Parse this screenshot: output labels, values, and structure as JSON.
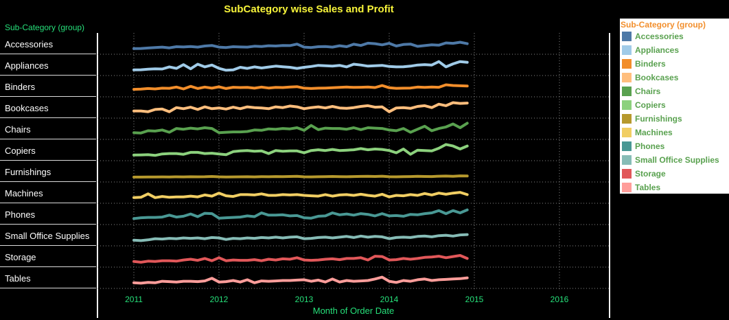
{
  "chart_data": {
    "type": "line",
    "title": "SubCategory wise Sales and Profit",
    "xlabel": "Month of Order Date",
    "row_header": "Sub-Category (group)",
    "legend_title": "Sub-Category (group)",
    "x_ticks": [
      "2011",
      "2012",
      "2013",
      "2014",
      "2015",
      "2016"
    ],
    "xlim": [
      "2011-01",
      "2016-12"
    ],
    "x_months": [
      "2011-01",
      "2011-02",
      "2011-03",
      "2011-04",
      "2011-05",
      "2011-06",
      "2011-07",
      "2011-08",
      "2011-09",
      "2011-10",
      "2011-11",
      "2011-12",
      "2012-01",
      "2012-02",
      "2012-03",
      "2012-04",
      "2012-05",
      "2012-06",
      "2012-07",
      "2012-08",
      "2012-09",
      "2012-10",
      "2012-11",
      "2012-12",
      "2013-01",
      "2013-02",
      "2013-03",
      "2013-04",
      "2013-05",
      "2013-06",
      "2013-07",
      "2013-08",
      "2013-09",
      "2013-10",
      "2013-11",
      "2013-12",
      "2014-01",
      "2014-02",
      "2014-03",
      "2014-04",
      "2014-05",
      "2014-06",
      "2014-07",
      "2014-08",
      "2014-09",
      "2014-10",
      "2014-11",
      "2014-12"
    ],
    "grid": true,
    "legend_position": "right",
    "series": [
      {
        "name": "Accessories",
        "color": "#4e79a7",
        "values": [
          0.2,
          0.22,
          0.28,
          0.35,
          0.4,
          0.3,
          0.45,
          0.42,
          0.48,
          0.4,
          0.55,
          0.62,
          0.4,
          0.35,
          0.45,
          0.42,
          0.4,
          0.52,
          0.48,
          0.58,
          0.55,
          0.62,
          0.6,
          0.8,
          0.4,
          0.35,
          0.45,
          0.48,
          0.4,
          0.58,
          0.45,
          0.78,
          0.62,
          0.92,
          0.85,
          0.7,
          0.9,
          0.55,
          0.75,
          0.8,
          0.5,
          0.6,
          0.7,
          0.65,
          0.95,
          0.9,
          1.05,
          0.85
        ]
      },
      {
        "name": "Appliances",
        "color": "#a0cbe8",
        "values": [
          0.2,
          0.22,
          0.3,
          0.35,
          0.32,
          0.6,
          0.4,
          0.9,
          0.35,
          0.95,
          0.6,
          0.85,
          0.4,
          0.15,
          0.2,
          0.55,
          0.4,
          0.6,
          0.45,
          0.58,
          0.7,
          0.62,
          0.55,
          0.4,
          0.55,
          0.65,
          0.8,
          0.75,
          0.7,
          0.8,
          0.6,
          0.95,
          0.85,
          0.7,
          0.75,
          0.8,
          0.65,
          0.6,
          0.62,
          0.7,
          0.85,
          0.9,
          0.85,
          1.3,
          0.6,
          1.0,
          1.3,
          1.2
        ]
      },
      {
        "name": "Binders",
        "color": "#f28e2b",
        "values": [
          0.45,
          0.48,
          0.55,
          0.5,
          0.6,
          0.58,
          0.75,
          0.5,
          0.85,
          0.55,
          0.75,
          0.6,
          0.78,
          0.55,
          0.72,
          0.68,
          0.7,
          0.6,
          0.75,
          0.62,
          0.7,
          0.68,
          0.75,
          0.8,
          0.6,
          0.55,
          0.6,
          0.62,
          0.65,
          0.7,
          0.75,
          0.7,
          0.72,
          0.75,
          0.68,
          0.95,
          0.65,
          0.58,
          0.6,
          0.62,
          0.75,
          0.7,
          0.75,
          0.72,
          1.05,
          0.95,
          0.92,
          0.88
        ]
      },
      {
        "name": "Bookcases",
        "color": "#ffbe7d",
        "values": [
          0.4,
          0.4,
          0.3,
          0.6,
          0.65,
          0.3,
          0.85,
          0.7,
          0.9,
          0.6,
          0.95,
          0.7,
          0.8,
          0.65,
          0.9,
          0.7,
          0.95,
          0.85,
          0.8,
          0.7,
          0.95,
          0.85,
          1.05,
          0.95,
          0.7,
          0.85,
          0.95,
          0.8,
          1.0,
          0.8,
          0.75,
          0.85,
          1.0,
          1.1,
          0.9,
          0.95,
          0.3,
          0.8,
          0.85,
          0.75,
          1.0,
          1.1,
          0.85,
          1.3,
          1.1,
          1.5,
          1.4,
          1.45
        ]
      },
      {
        "name": "Chairs",
        "color": "#59a14f",
        "values": [
          0.35,
          0.3,
          0.6,
          0.55,
          0.7,
          0.4,
          0.9,
          0.8,
          0.95,
          0.85,
          1.0,
          0.9,
          0.35,
          0.4,
          0.45,
          0.45,
          0.5,
          0.7,
          0.65,
          0.85,
          0.8,
          0.9,
          0.85,
          1.0,
          0.65,
          1.3,
          0.75,
          0.95,
          0.9,
          0.9,
          0.8,
          1.0,
          0.75,
          1.0,
          0.95,
          0.9,
          0.7,
          0.6,
          0.9,
          0.4,
          0.8,
          1.2,
          0.6,
          0.9,
          1.1,
          1.5,
          1.0,
          1.6
        ]
      },
      {
        "name": "Copiers",
        "color": "#8cd17d",
        "values": [
          0.2,
          0.22,
          0.25,
          0.15,
          0.35,
          0.4,
          0.4,
          0.3,
          0.55,
          0.55,
          0.4,
          0.45,
          0.35,
          0.25,
          0.65,
          0.75,
          0.8,
          0.7,
          0.75,
          0.4,
          0.8,
          0.7,
          0.75,
          0.75,
          0.5,
          0.8,
          0.9,
          0.8,
          0.95,
          0.8,
          0.85,
          0.9,
          1.05,
          0.9,
          1.0,
          0.95,
          0.8,
          0.5,
          1.0,
          0.3,
          0.85,
          0.8,
          0.75,
          1.1,
          1.6,
          1.4,
          1.0,
          1.4
        ]
      },
      {
        "name": "Furnishings",
        "color": "#b6992d",
        "values": [
          0.1,
          0.1,
          0.12,
          0.12,
          0.13,
          0.12,
          0.14,
          0.13,
          0.15,
          0.14,
          0.15,
          0.18,
          0.14,
          0.12,
          0.13,
          0.14,
          0.15,
          0.13,
          0.16,
          0.15,
          0.17,
          0.16,
          0.18,
          0.2,
          0.14,
          0.13,
          0.15,
          0.16,
          0.18,
          0.16,
          0.15,
          0.17,
          0.19,
          0.2,
          0.18,
          0.22,
          0.15,
          0.14,
          0.16,
          0.17,
          0.2,
          0.18,
          0.17,
          0.22,
          0.24,
          0.2,
          0.26,
          0.25
        ]
      },
      {
        "name": "Machines",
        "color": "#f1ce63",
        "values": [
          0.2,
          0.25,
          0.7,
          0.2,
          0.35,
          0.25,
          0.3,
          0.3,
          0.4,
          0.3,
          0.55,
          0.4,
          0.8,
          0.45,
          0.35,
          0.6,
          0.6,
          0.55,
          0.7,
          0.5,
          0.5,
          0.6,
          0.55,
          0.6,
          0.5,
          0.45,
          0.4,
          0.6,
          0.4,
          0.55,
          0.6,
          0.5,
          0.65,
          0.5,
          0.4,
          0.65,
          0.3,
          0.5,
          0.45,
          0.6,
          0.5,
          0.75,
          0.55,
          0.8,
          0.65,
          0.8,
          0.9,
          0.6
        ]
      },
      {
        "name": "Phones",
        "color": "#499894",
        "values": [
          0.25,
          0.35,
          0.4,
          0.4,
          0.45,
          0.7,
          0.45,
          0.55,
          0.85,
          0.5,
          0.95,
          0.9,
          0.3,
          0.35,
          0.4,
          0.45,
          0.6,
          0.5,
          1.0,
          0.7,
          0.7,
          0.75,
          0.6,
          0.65,
          0.35,
          0.3,
          0.55,
          0.6,
          1.0,
          0.75,
          0.85,
          0.7,
          0.9,
          0.8,
          0.6,
          0.9,
          0.6,
          0.65,
          0.55,
          0.8,
          0.75,
          0.9,
          1.0,
          1.3,
          0.9,
          1.3,
          1.0,
          1.4
        ]
      },
      {
        "name": "Small Office Supplies",
        "color": "#86bcb6",
        "values": [
          0.2,
          0.15,
          0.25,
          0.4,
          0.35,
          0.45,
          0.4,
          0.5,
          0.45,
          0.5,
          0.4,
          0.55,
          0.5,
          0.3,
          0.45,
          0.4,
          0.5,
          0.45,
          0.55,
          0.5,
          0.6,
          0.5,
          0.6,
          0.65,
          0.4,
          0.45,
          0.55,
          0.6,
          0.5,
          0.6,
          0.7,
          0.55,
          0.75,
          0.6,
          0.7,
          0.65,
          0.4,
          0.55,
          0.6,
          0.55,
          0.7,
          0.75,
          0.65,
          0.8,
          0.85,
          0.75,
          0.9,
          0.95
        ]
      },
      {
        "name": "Storage",
        "color": "#e15759",
        "values": [
          0.2,
          0.1,
          0.25,
          0.2,
          0.3,
          0.3,
          0.25,
          0.4,
          0.5,
          0.35,
          0.6,
          0.3,
          0.7,
          0.3,
          0.4,
          0.35,
          0.35,
          0.45,
          0.3,
          0.5,
          0.4,
          0.55,
          0.5,
          0.7,
          0.4,
          0.35,
          0.4,
          0.5,
          0.55,
          0.45,
          0.6,
          0.6,
          0.7,
          0.4,
          0.9,
          0.85,
          0.4,
          0.45,
          0.6,
          0.5,
          0.6,
          0.75,
          0.8,
          0.9,
          0.7,
          0.85,
          1.0,
          0.6
        ]
      },
      {
        "name": "Tables",
        "color": "#ff9d9a",
        "values": [
          0.2,
          0.15,
          0.25,
          0.2,
          0.4,
          0.35,
          0.3,
          0.4,
          0.4,
          0.35,
          0.45,
          0.8,
          0.3,
          0.35,
          0.5,
          0.3,
          0.6,
          0.2,
          0.45,
          0.4,
          0.45,
          0.5,
          0.5,
          0.55,
          0.6,
          0.4,
          0.55,
          0.3,
          0.7,
          0.3,
          0.5,
          0.4,
          0.45,
          0.5,
          0.7,
          0.95,
          0.4,
          0.25,
          0.5,
          0.4,
          0.6,
          0.7,
          0.5,
          0.6,
          0.65,
          0.7,
          0.75,
          0.85
        ]
      }
    ]
  }
}
